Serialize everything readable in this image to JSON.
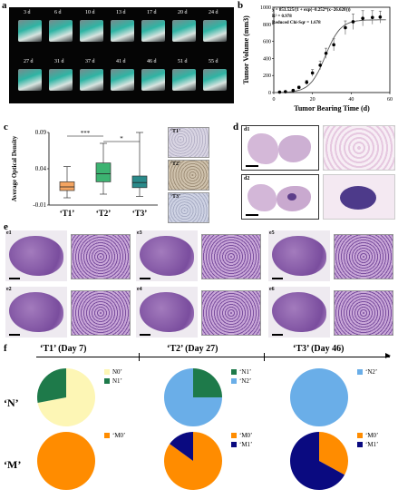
{
  "panels": {
    "a": {
      "label": "a",
      "row1": [
        "3 d",
        "6 d",
        "10 d",
        "13 d",
        "17 d",
        "20 d",
        "24 d"
      ],
      "row2": [
        "27 d",
        "31 d",
        "37 d",
        "41 d",
        "46 d",
        "51 d",
        "55 d"
      ]
    },
    "b": {
      "label": "b",
      "equation": "y = 853.525/(1 + exp(−0.252*(x−26.620)))",
      "r2": "R² = 0.978",
      "chisq": "Reduced Chi-Sqr = 1.678",
      "chart_data": {
        "type": "scatter",
        "xlabel": "Tumor Bearing Time (d)",
        "ylabel": "Tumor Volume (mm3)",
        "xlim": [
          0,
          60
        ],
        "ylim": [
          0,
          1000
        ],
        "xticks": [
          0,
          20,
          40,
          60
        ],
        "yticks": [
          0,
          200,
          400,
          600,
          800,
          1000
        ],
        "points": [
          {
            "x": 3,
            "y": 5,
            "err": 5
          },
          {
            "x": 6,
            "y": 10,
            "err": 8
          },
          {
            "x": 10,
            "y": 25,
            "err": 10
          },
          {
            "x": 13,
            "y": 60,
            "err": 15
          },
          {
            "x": 17,
            "y": 120,
            "err": 25
          },
          {
            "x": 20,
            "y": 230,
            "err": 40
          },
          {
            "x": 24,
            "y": 320,
            "err": 50
          },
          {
            "x": 27,
            "y": 460,
            "err": 60
          },
          {
            "x": 31,
            "y": 560,
            "err": 70
          },
          {
            "x": 37,
            "y": 760,
            "err": 80
          },
          {
            "x": 41,
            "y": 830,
            "err": 90
          },
          {
            "x": 46,
            "y": 870,
            "err": 90
          },
          {
            "x": 51,
            "y": 880,
            "err": 80
          },
          {
            "x": 55,
            "y": 885,
            "err": 70
          }
        ],
        "fit": {
          "A": 853.525,
          "k": 0.252,
          "x0": 26.62
        }
      }
    },
    "c": {
      "label": "c",
      "chart_data": {
        "type": "box",
        "ylabel": "Average Optical Density",
        "ylim": [
          -0.01,
          0.09
        ],
        "yticks": [
          -0.01,
          0.04,
          0.09
        ],
        "yticklabels": [
          "-0.01",
          "0.04",
          "0.09"
        ],
        "categories": [
          "‘T1’",
          "‘T2’",
          "‘T3’"
        ],
        "boxes": [
          {
            "min": 0.0,
            "q1": 0.01,
            "median": 0.015,
            "q3": 0.022,
            "max": 0.043,
            "color": "#f4a460"
          },
          {
            "min": 0.005,
            "q1": 0.022,
            "median": 0.033,
            "q3": 0.048,
            "max": 0.075,
            "color": "#3cb371"
          },
          {
            "min": 0.002,
            "q1": 0.014,
            "median": 0.021,
            "q3": 0.03,
            "max": 0.09,
            "color": "#2a8a8a"
          }
        ],
        "sig": [
          {
            "from": 0,
            "to": 1,
            "text": "***"
          },
          {
            "from": 1,
            "to": 2,
            "text": "*"
          }
        ]
      },
      "thumbs": [
        "‘T1’",
        "‘T2’",
        "‘T3’"
      ]
    },
    "d": {
      "label": "d",
      "sub": [
        "d1",
        "d2"
      ]
    },
    "e": {
      "label": "e",
      "sub": [
        "e1",
        "e2",
        "e3",
        "e4",
        "e5",
        "e6"
      ]
    },
    "f": {
      "label": "f",
      "timepoints": [
        "‘T1’ (Day 7)",
        "‘T2’ (Day 27)",
        "‘T3’ (Day 46)"
      ],
      "row_labels": [
        "‘N’",
        "‘M’"
      ],
      "pies": [
        {
          "slices": [
            {
              "label": "N0’",
              "value": 0.72,
              "color": "#fdf6b5"
            },
            {
              "label": "N1’",
              "value": 0.28,
              "color": "#1e7a4a"
            }
          ]
        },
        {
          "slices": [
            {
              "label": "‘N1’",
              "value": 0.25,
              "color": "#1e7a4a"
            },
            {
              "label": "‘N2’",
              "value": 0.75,
              "color": "#6aaee8"
            }
          ]
        },
        {
          "slices": [
            {
              "label": "‘N2’",
              "value": 1.0,
              "color": "#6aaee8"
            }
          ]
        },
        {
          "slices": [
            {
              "label": "‘M0’",
              "value": 1.0,
              "color": "#ff8c00"
            }
          ]
        },
        {
          "slices": [
            {
              "label": "‘M0’",
              "value": 0.85,
              "color": "#ff8c00"
            },
            {
              "label": "‘M1’",
              "value": 0.15,
              "color": "#0a0a80"
            }
          ]
        },
        {
          "slices": [
            {
              "label": "‘M0’",
              "value": 0.33,
              "color": "#ff8c00"
            },
            {
              "label": "‘M1’",
              "value": 0.67,
              "color": "#0a0a80"
            }
          ]
        }
      ]
    }
  }
}
